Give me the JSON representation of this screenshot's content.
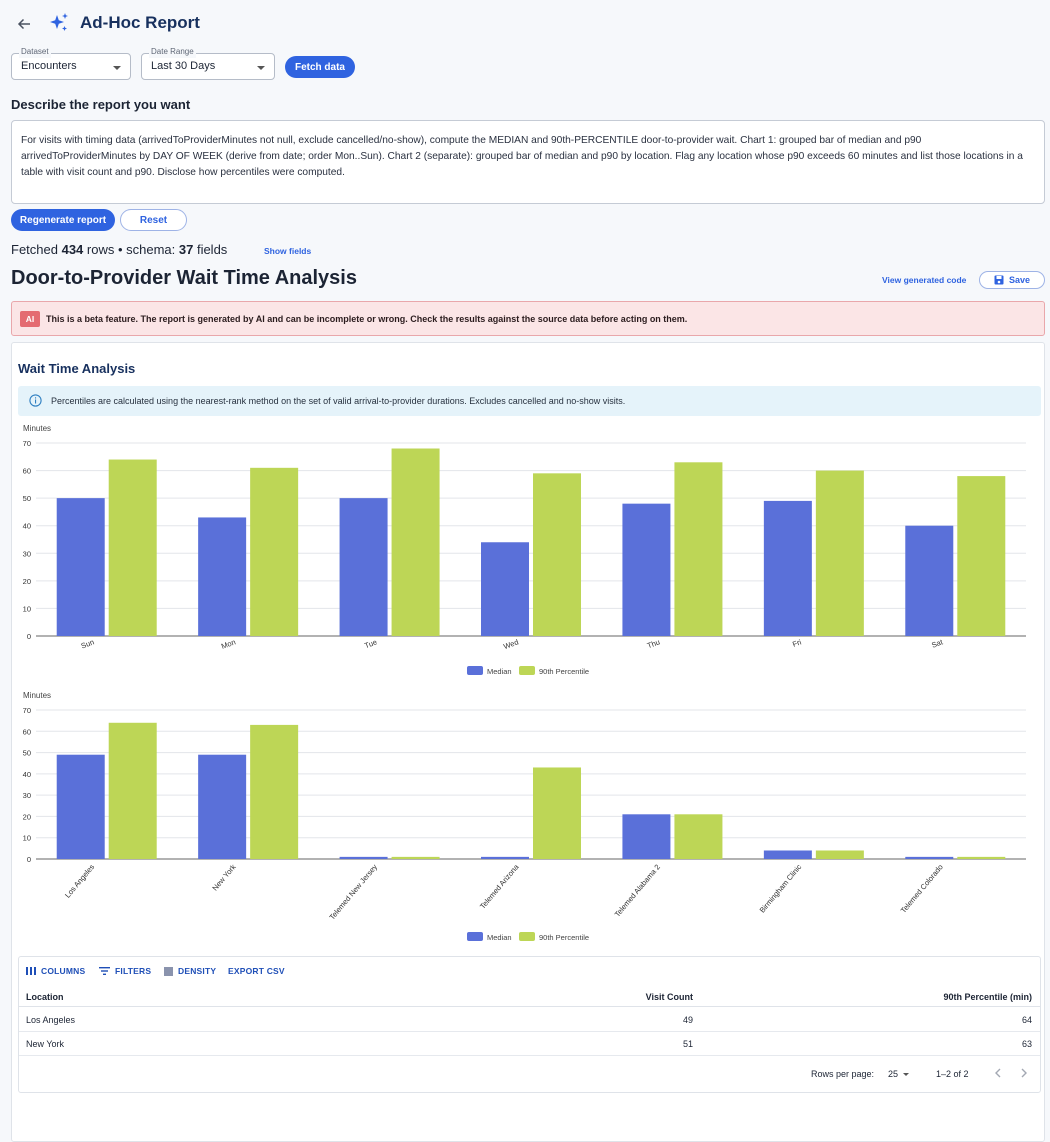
{
  "app": {
    "title": "Ad-Hoc Report"
  },
  "controls": {
    "dataset_label": "Dataset",
    "dataset_value": "Encounters",
    "range_label": "Date Range",
    "range_value": "Last 30 Days",
    "fetch_label": "Fetch data"
  },
  "prompt": {
    "heading": "Describe the report you want",
    "text": "For visits with timing data (arrivedToProviderMinutes not null, exclude cancelled/no-show), compute the MEDIAN and 90th-PERCENTILE door-to-provider wait. Chart 1: grouped bar of median and p90 arrivedToProviderMinutes by DAY OF WEEK (derive from date; order Mon..Sun). Chart 2 (separate): grouped bar of median and p90 by location. Flag any location whose p90 exceeds 60 minutes and list those locations in a table with visit count and p90. Disclose how percentiles were computed.",
    "regenerate_label": "Regenerate report",
    "reset_label": "Reset"
  },
  "fetched": {
    "prefix": "Fetched ",
    "rows": "434",
    "mid": " rows • schema: ",
    "fields": "37",
    "suffix": " fields",
    "show_fields_label": "Show fields"
  },
  "report": {
    "title": "Door-to-Provider Wait Time Analysis",
    "view_code_label": "View generated code",
    "save_label": "Save",
    "beta_badge": "AI",
    "beta_text": "This is a beta feature. The report is generated by AI and can be incomplete or wrong. Check the results against the source data before acting on them.",
    "section_title": "Wait Time Analysis",
    "info_text": "Percentiles are calculated using the nearest-rank method on the set of valid arrival-to-provider durations. Excludes cancelled and no-show visits."
  },
  "colors": {
    "median": "#5a70d9",
    "p90": "#bdd656",
    "accent": "#2f63e0"
  },
  "chart_data": [
    {
      "type": "bar",
      "ylabel": "Minutes",
      "ylim": [
        0,
        70
      ],
      "yticks": [
        0,
        10,
        20,
        30,
        40,
        50,
        60,
        70
      ],
      "categories": [
        "Sun",
        "Mon",
        "Tue",
        "Wed",
        "Thu",
        "Fri",
        "Sat"
      ],
      "series": [
        {
          "name": "Median",
          "values": [
            50,
            43,
            50,
            34,
            48,
            49,
            40
          ]
        },
        {
          "name": "90th Percentile",
          "values": [
            64,
            61,
            68,
            59,
            63,
            60,
            58
          ]
        }
      ],
      "legend": "bottom-center",
      "grid": true
    },
    {
      "type": "bar",
      "ylabel": "Minutes",
      "ylim": [
        0,
        70
      ],
      "yticks": [
        0,
        10,
        20,
        30,
        40,
        50,
        60,
        70
      ],
      "categories": [
        "Los Angeles",
        "New York",
        "Telemed New Jersey",
        "Telemed Arizona",
        "Telemed Alabama 2",
        "Birmingham Clinic",
        "Telemed Colorado"
      ],
      "series": [
        {
          "name": "Median",
          "values": [
            49,
            49,
            1,
            1,
            21,
            4,
            1
          ]
        },
        {
          "name": "90th Percentile",
          "values": [
            64,
            63,
            1,
            43,
            21,
            4,
            1
          ]
        }
      ],
      "legend": "bottom-center",
      "grid": true
    }
  ],
  "grid": {
    "toolbar": {
      "columns": "COLUMNS",
      "filters": "FILTERS",
      "density": "DENSITY",
      "export": "EXPORT CSV"
    },
    "columns": [
      "Location",
      "Visit Count",
      "90th Percentile (min)"
    ],
    "rows": [
      [
        "Los Angeles",
        "49",
        "64"
      ],
      [
        "New York",
        "51",
        "63"
      ]
    ],
    "rows_per_page_label": "Rows per page:",
    "rows_per_page_value": "25",
    "pagination": "1–2 of 2"
  }
}
